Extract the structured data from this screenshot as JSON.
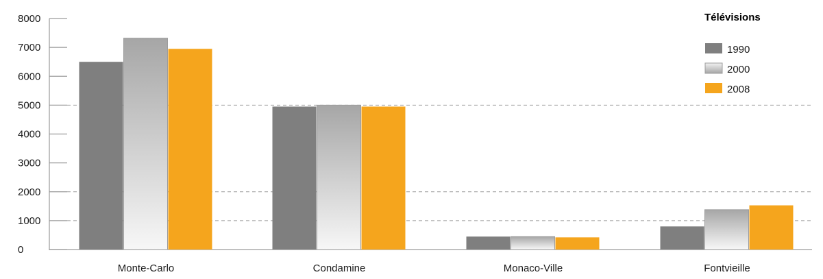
{
  "chart_data": {
    "type": "bar",
    "title": "",
    "xlabel": "",
    "ylabel": "",
    "ylim": [
      0,
      8000
    ],
    "yticks": [
      0,
      1000,
      2000,
      3000,
      4000,
      5000,
      6000,
      7000,
      8000
    ],
    "dashed_gridlines": [
      1000,
      2000,
      5000
    ],
    "categories": [
      "Monte-Carlo",
      "Condamine",
      "Monaco-Ville",
      "Fontvieille"
    ],
    "legend": {
      "title": "Télévisions",
      "placement": "top-right"
    },
    "series": [
      {
        "name": "1990",
        "color": "#808080",
        "values": [
          6500,
          4950,
          450,
          800
        ]
      },
      {
        "name": "2000",
        "color": "#c8c8c8",
        "values": [
          7320,
          5000,
          450,
          1380
        ]
      },
      {
        "name": "2008",
        "color": "#f5a623",
        "values": [
          6950,
          4950,
          420,
          1530
        ]
      }
    ]
  }
}
